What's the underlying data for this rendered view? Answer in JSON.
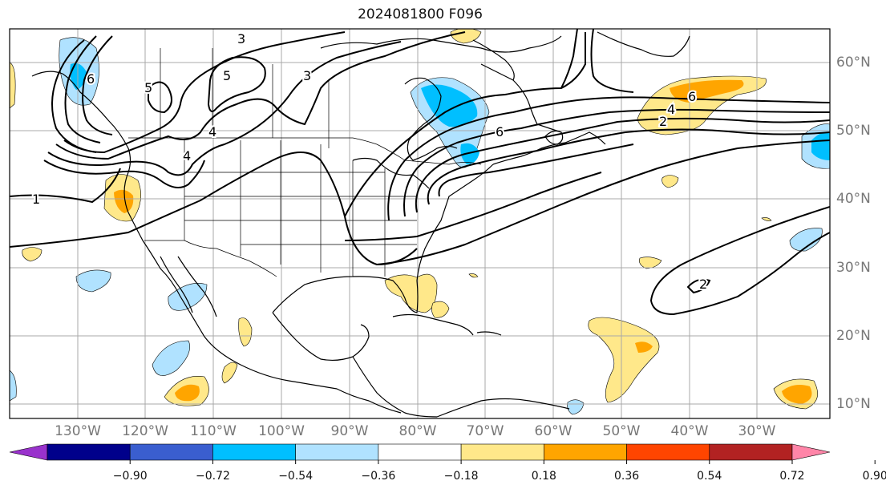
{
  "title": "2024081800 F096",
  "lon_labels": [
    "130°W",
    "120°W",
    "110°W",
    "100°W",
    "90°W",
    "80°W",
    "70°W",
    "60°W",
    "50°W",
    "40°W",
    "30°W"
  ],
  "lat_labels": [
    "60°N",
    "50°N",
    "40°N",
    "30°N",
    "20°N",
    "10°N"
  ],
  "contour_labels": [
    "1",
    "2",
    "3",
    "3",
    "4",
    "4",
    "4",
    "5",
    "5",
    "6",
    "6",
    "6",
    "2"
  ],
  "colorbar": {
    "ticks": [
      "−0.90",
      "−0.72",
      "−0.54",
      "−0.36",
      "−0.18",
      "0.18",
      "0.36",
      "0.54",
      "0.72",
      "0.90"
    ],
    "colors": [
      "#9932cc",
      "#00008b",
      "#3a5ecf",
      "#00bfff",
      "#b0e2ff",
      "#ffffff",
      "#ffe88a",
      "#ffa500",
      "#ff4500",
      "#b22222",
      "#ff85a8"
    ]
  },
  "shading_colors": {
    "light_blue": "#b0e2ff",
    "blue": "#00bfff",
    "light_yellow": "#ffe88a",
    "orange": "#ffa500"
  }
}
